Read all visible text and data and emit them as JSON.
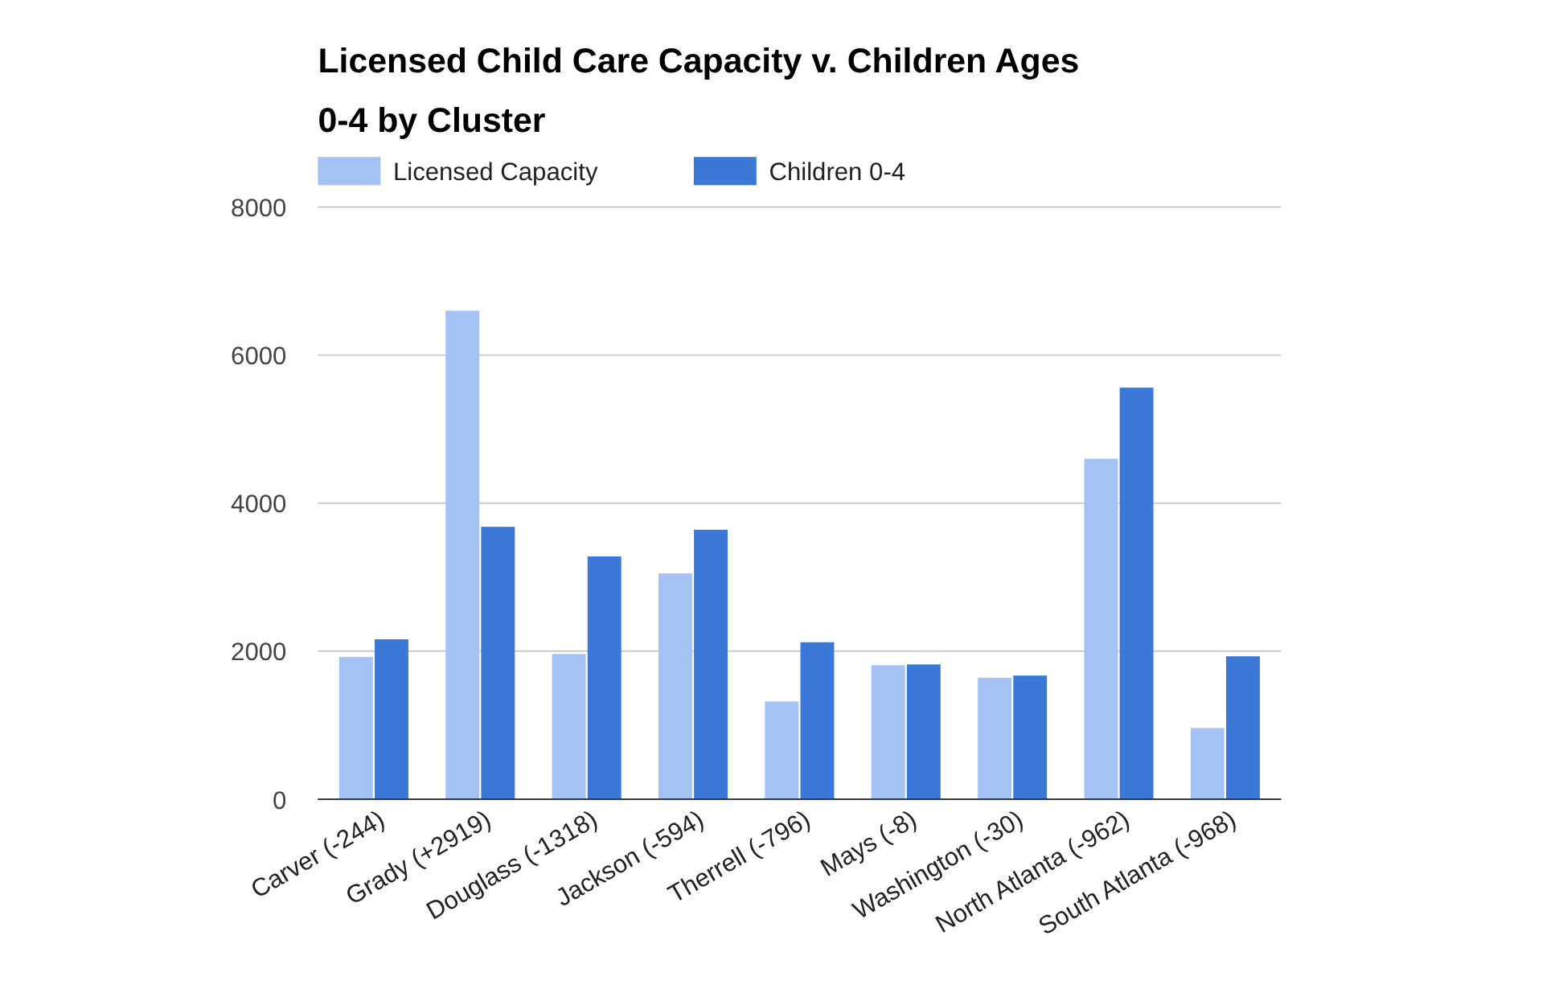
{
  "chart_data": {
    "type": "bar",
    "title": "Licensed Child Care Capacity v. Children Ages 0-4 by Cluster",
    "categories": [
      "Carver (-244)",
      "Grady (+2919)",
      "Douglass (-1318)",
      "Jackson (-594)",
      "Therrell (-796)",
      "Mays (-8)",
      "Washington (-30)",
      "North Atlanta (-962)",
      "South Atlanta (-968)"
    ],
    "series": [
      {
        "name": "Licensed Capacity",
        "color": "#a4c2f4",
        "values": [
          1920,
          6600,
          1960,
          3050,
          1320,
          1810,
          1640,
          4600,
          960
        ]
      },
      {
        "name": "Children 0-4",
        "color": "#3c78d8",
        "values": [
          2160,
          3680,
          3280,
          3640,
          2120,
          1820,
          1670,
          5560,
          1930
        ]
      }
    ],
    "ylim": [
      0,
      8000
    ],
    "yticks": [
      0,
      2000,
      4000,
      6000,
      8000
    ],
    "grid": "y",
    "legend": "top left"
  }
}
